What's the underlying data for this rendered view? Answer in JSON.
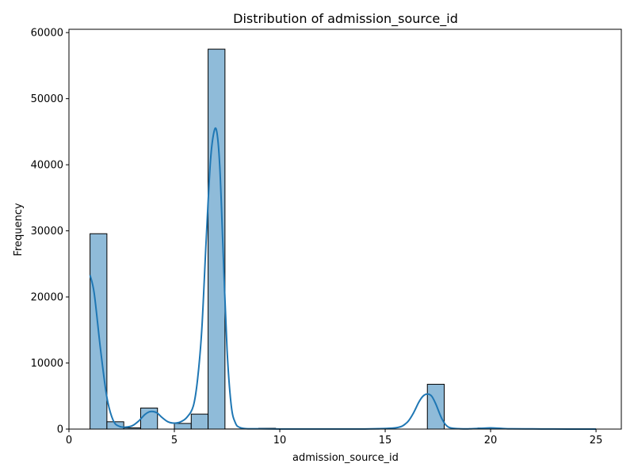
{
  "chart_data": {
    "type": "bar",
    "subtype": "histogram-with-kde",
    "title": "Distribution of admission_source_id",
    "xlabel": "admission_source_id",
    "ylabel": "Frequency",
    "xlim": [
      0,
      26.2
    ],
    "ylim": [
      0,
      60500
    ],
    "xticks": [
      0,
      5,
      10,
      15,
      20,
      25
    ],
    "yticks": [
      0,
      10000,
      20000,
      30000,
      40000,
      50000,
      60000
    ],
    "grid": false,
    "legend": "none",
    "colors": {
      "bar_fill": "#8fbbd9",
      "bar_edge": "#000000",
      "kde_line": "#1f77b4"
    },
    "bins": [
      {
        "x0": 1.0,
        "x1": 1.8,
        "count": 29565
      },
      {
        "x0": 1.8,
        "x1": 2.6,
        "count": 1104
      },
      {
        "x0": 2.6,
        "x1": 3.4,
        "count": 187
      },
      {
        "x0": 3.4,
        "x1": 4.2,
        "count": 3187
      },
      {
        "x0": 4.2,
        "x1": 5.0,
        "count": 0
      },
      {
        "x0": 5.0,
        "x1": 5.8,
        "count": 855
      },
      {
        "x0": 5.8,
        "x1": 6.6,
        "count": 2264
      },
      {
        "x0": 6.6,
        "x1": 7.4,
        "count": 57494
      },
      {
        "x0": 7.4,
        "x1": 8.2,
        "count": 16
      },
      {
        "x0": 8.2,
        "x1": 9.0,
        "count": 0
      },
      {
        "x0": 9.0,
        "x1": 9.8,
        "count": 125
      },
      {
        "x0": 9.8,
        "x1": 10.6,
        "count": 8
      },
      {
        "x0": 10.6,
        "x1": 11.4,
        "count": 2
      },
      {
        "x0": 11.4,
        "x1": 12.2,
        "count": 0
      },
      {
        "x0": 12.2,
        "x1": 13.0,
        "count": 0
      },
      {
        "x0": 13.0,
        "x1": 13.8,
        "count": 1
      },
      {
        "x0": 13.8,
        "x1": 14.6,
        "count": 2
      },
      {
        "x0": 14.6,
        "x1": 15.4,
        "count": 0
      },
      {
        "x0": 15.4,
        "x1": 16.2,
        "count": 0
      },
      {
        "x0": 16.2,
        "x1": 17.0,
        "count": 0
      },
      {
        "x0": 17.0,
        "x1": 17.8,
        "count": 6781
      },
      {
        "x0": 17.8,
        "x1": 18.6,
        "count": 0
      },
      {
        "x0": 18.6,
        "x1": 19.4,
        "count": 0
      },
      {
        "x0": 19.4,
        "x1": 20.2,
        "count": 161
      },
      {
        "x0": 20.2,
        "x1": 21.0,
        "count": 0
      },
      {
        "x0": 21.0,
        "x1": 21.8,
        "count": 0
      },
      {
        "x0": 21.8,
        "x1": 22.6,
        "count": 12
      },
      {
        "x0": 22.6,
        "x1": 23.4,
        "count": 0
      },
      {
        "x0": 23.4,
        "x1": 24.2,
        "count": 0
      },
      {
        "x0": 24.2,
        "x1": 25.0,
        "count": 2
      }
    ],
    "kde": {
      "x": [
        1.0,
        1.2,
        1.5,
        1.8,
        2.1,
        2.4,
        2.7,
        3.0,
        3.3,
        3.6,
        3.8,
        4.0,
        4.2,
        4.4,
        4.7,
        5.0,
        5.3,
        5.6,
        5.9,
        6.1,
        6.3,
        6.5,
        6.7,
        6.85,
        7.0,
        7.15,
        7.3,
        7.5,
        7.7,
        7.9,
        8.1,
        8.4,
        9.0,
        10.0,
        12.0,
        14.0,
        15.5,
        16.0,
        16.3,
        16.6,
        16.8,
        17.0,
        17.2,
        17.4,
        17.7,
        18.0,
        18.5,
        19.0,
        19.5,
        20.0,
        20.5,
        21.0,
        22.0,
        23.0,
        24.0,
        25.0
      ],
      "y": [
        23300,
        20500,
        12000,
        4800,
        1300,
        400,
        300,
        500,
        1200,
        2200,
        2600,
        2650,
        2400,
        1800,
        1100,
        900,
        1100,
        1800,
        3500,
        7500,
        15000,
        28000,
        40000,
        44500,
        45200,
        40000,
        28000,
        12000,
        3500,
        900,
        250,
        60,
        50,
        20,
        20,
        20,
        200,
        900,
        2200,
        4100,
        5000,
        5300,
        5000,
        3800,
        1500,
        300,
        60,
        40,
        100,
        180,
        100,
        40,
        30,
        10,
        5,
        0
      ]
    }
  }
}
